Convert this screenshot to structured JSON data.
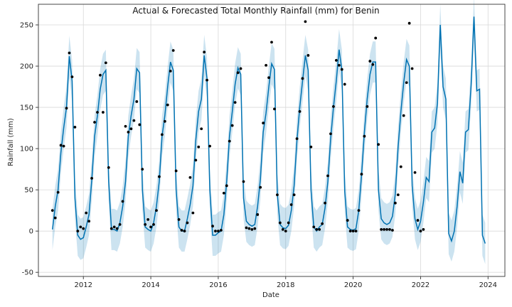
{
  "chart_data": {
    "type": "line",
    "title": "Actual & Forecasted Total Monthly Rainfall (mm) for Benin",
    "xlabel": "Date",
    "ylabel": "Rainfall (mm)",
    "xlim": [
      "2010-09",
      "2024-07"
    ],
    "ylim": [
      -55,
      275
    ],
    "x_ticks": [
      2012,
      2014,
      2016,
      2018,
      2020,
      2022,
      2024
    ],
    "y_ticks": [
      -50,
      0,
      50,
      100,
      150,
      200,
      250
    ],
    "grid": true,
    "legend": "none",
    "colors": {
      "forecast": "#0072B2",
      "uncertainty": "#0072B2",
      "actual": "#000000"
    },
    "start_date": "2011-02",
    "series": [
      {
        "name": "",
        "kind": "actual-points",
        "values": [
          25,
          16,
          47,
          104,
          103,
          149,
          216,
          187,
          126,
          0,
          5,
          3,
          22,
          12,
          64,
          132,
          144,
          189,
          144,
          204,
          77,
          3,
          5,
          3,
          8,
          36,
          127,
          120,
          124,
          134,
          157,
          129,
          75,
          8,
          14,
          5,
          8,
          25,
          66,
          117,
          133,
          153,
          194,
          219,
          73,
          14,
          1,
          0,
          10,
          65,
          22,
          86,
          102,
          124,
          217,
          183,
          103,
          6,
          0,
          0,
          1,
          46,
          55,
          109,
          128,
          156,
          192,
          197,
          60,
          4,
          3,
          2,
          3,
          20,
          53,
          131,
          201,
          186,
          229,
          148,
          44,
          10,
          2,
          0,
          10,
          32,
          44,
          112,
          145,
          185,
          254,
          213,
          102,
          5,
          2,
          2,
          9,
          34,
          67,
          118,
          151,
          207,
          201,
          196,
          178,
          13,
          0,
          0,
          0,
          25,
          69,
          115,
          151,
          206,
          202,
          234,
          105,
          2,
          2,
          2,
          2,
          1,
          34,
          44,
          78,
          140,
          180,
          252,
          197,
          71,
          13,
          0,
          2
        ]
      },
      {
        "name": "",
        "kind": "forecast",
        "values": [
          2,
          30,
          50,
          95,
          125,
          150,
          212,
          182,
          40,
          -5,
          -10,
          -8,
          5,
          20,
          62,
          115,
          140,
          172,
          190,
          195,
          60,
          2,
          2,
          0,
          10,
          30,
          60,
          115,
          140,
          160,
          197,
          192,
          50,
          5,
          2,
          0,
          10,
          30,
          60,
          115,
          140,
          175,
          205,
          195,
          50,
          5,
          0,
          0,
          15,
          32,
          55,
          110,
          145,
          160,
          213,
          185,
          50,
          -5,
          -5,
          -2,
          0,
          20,
          60,
          115,
          145,
          178,
          198,
          190,
          40,
          12,
          8,
          6,
          8,
          30,
          63,
          120,
          143,
          175,
          203,
          196,
          45,
          8,
          4,
          3,
          7,
          25,
          55,
          110,
          150,
          182,
          213,
          195,
          50,
          5,
          0,
          5,
          8,
          28,
          60,
          112,
          150,
          182,
          220,
          195,
          48,
          5,
          2,
          1,
          3,
          25,
          68,
          120,
          160,
          190,
          205,
          205,
          50,
          15,
          10,
          8,
          10,
          18,
          45,
          102,
          145,
          180,
          208,
          200,
          55,
          15,
          2,
          12,
          35,
          65,
          60,
          120,
          125,
          155,
          250,
          175,
          160,
          -3,
          -12,
          0,
          30,
          72,
          58,
          120,
          123,
          178,
          260,
          170,
          172,
          -5,
          -15
        ]
      }
    ],
    "uncertainty_halfwidth": 25
  }
}
